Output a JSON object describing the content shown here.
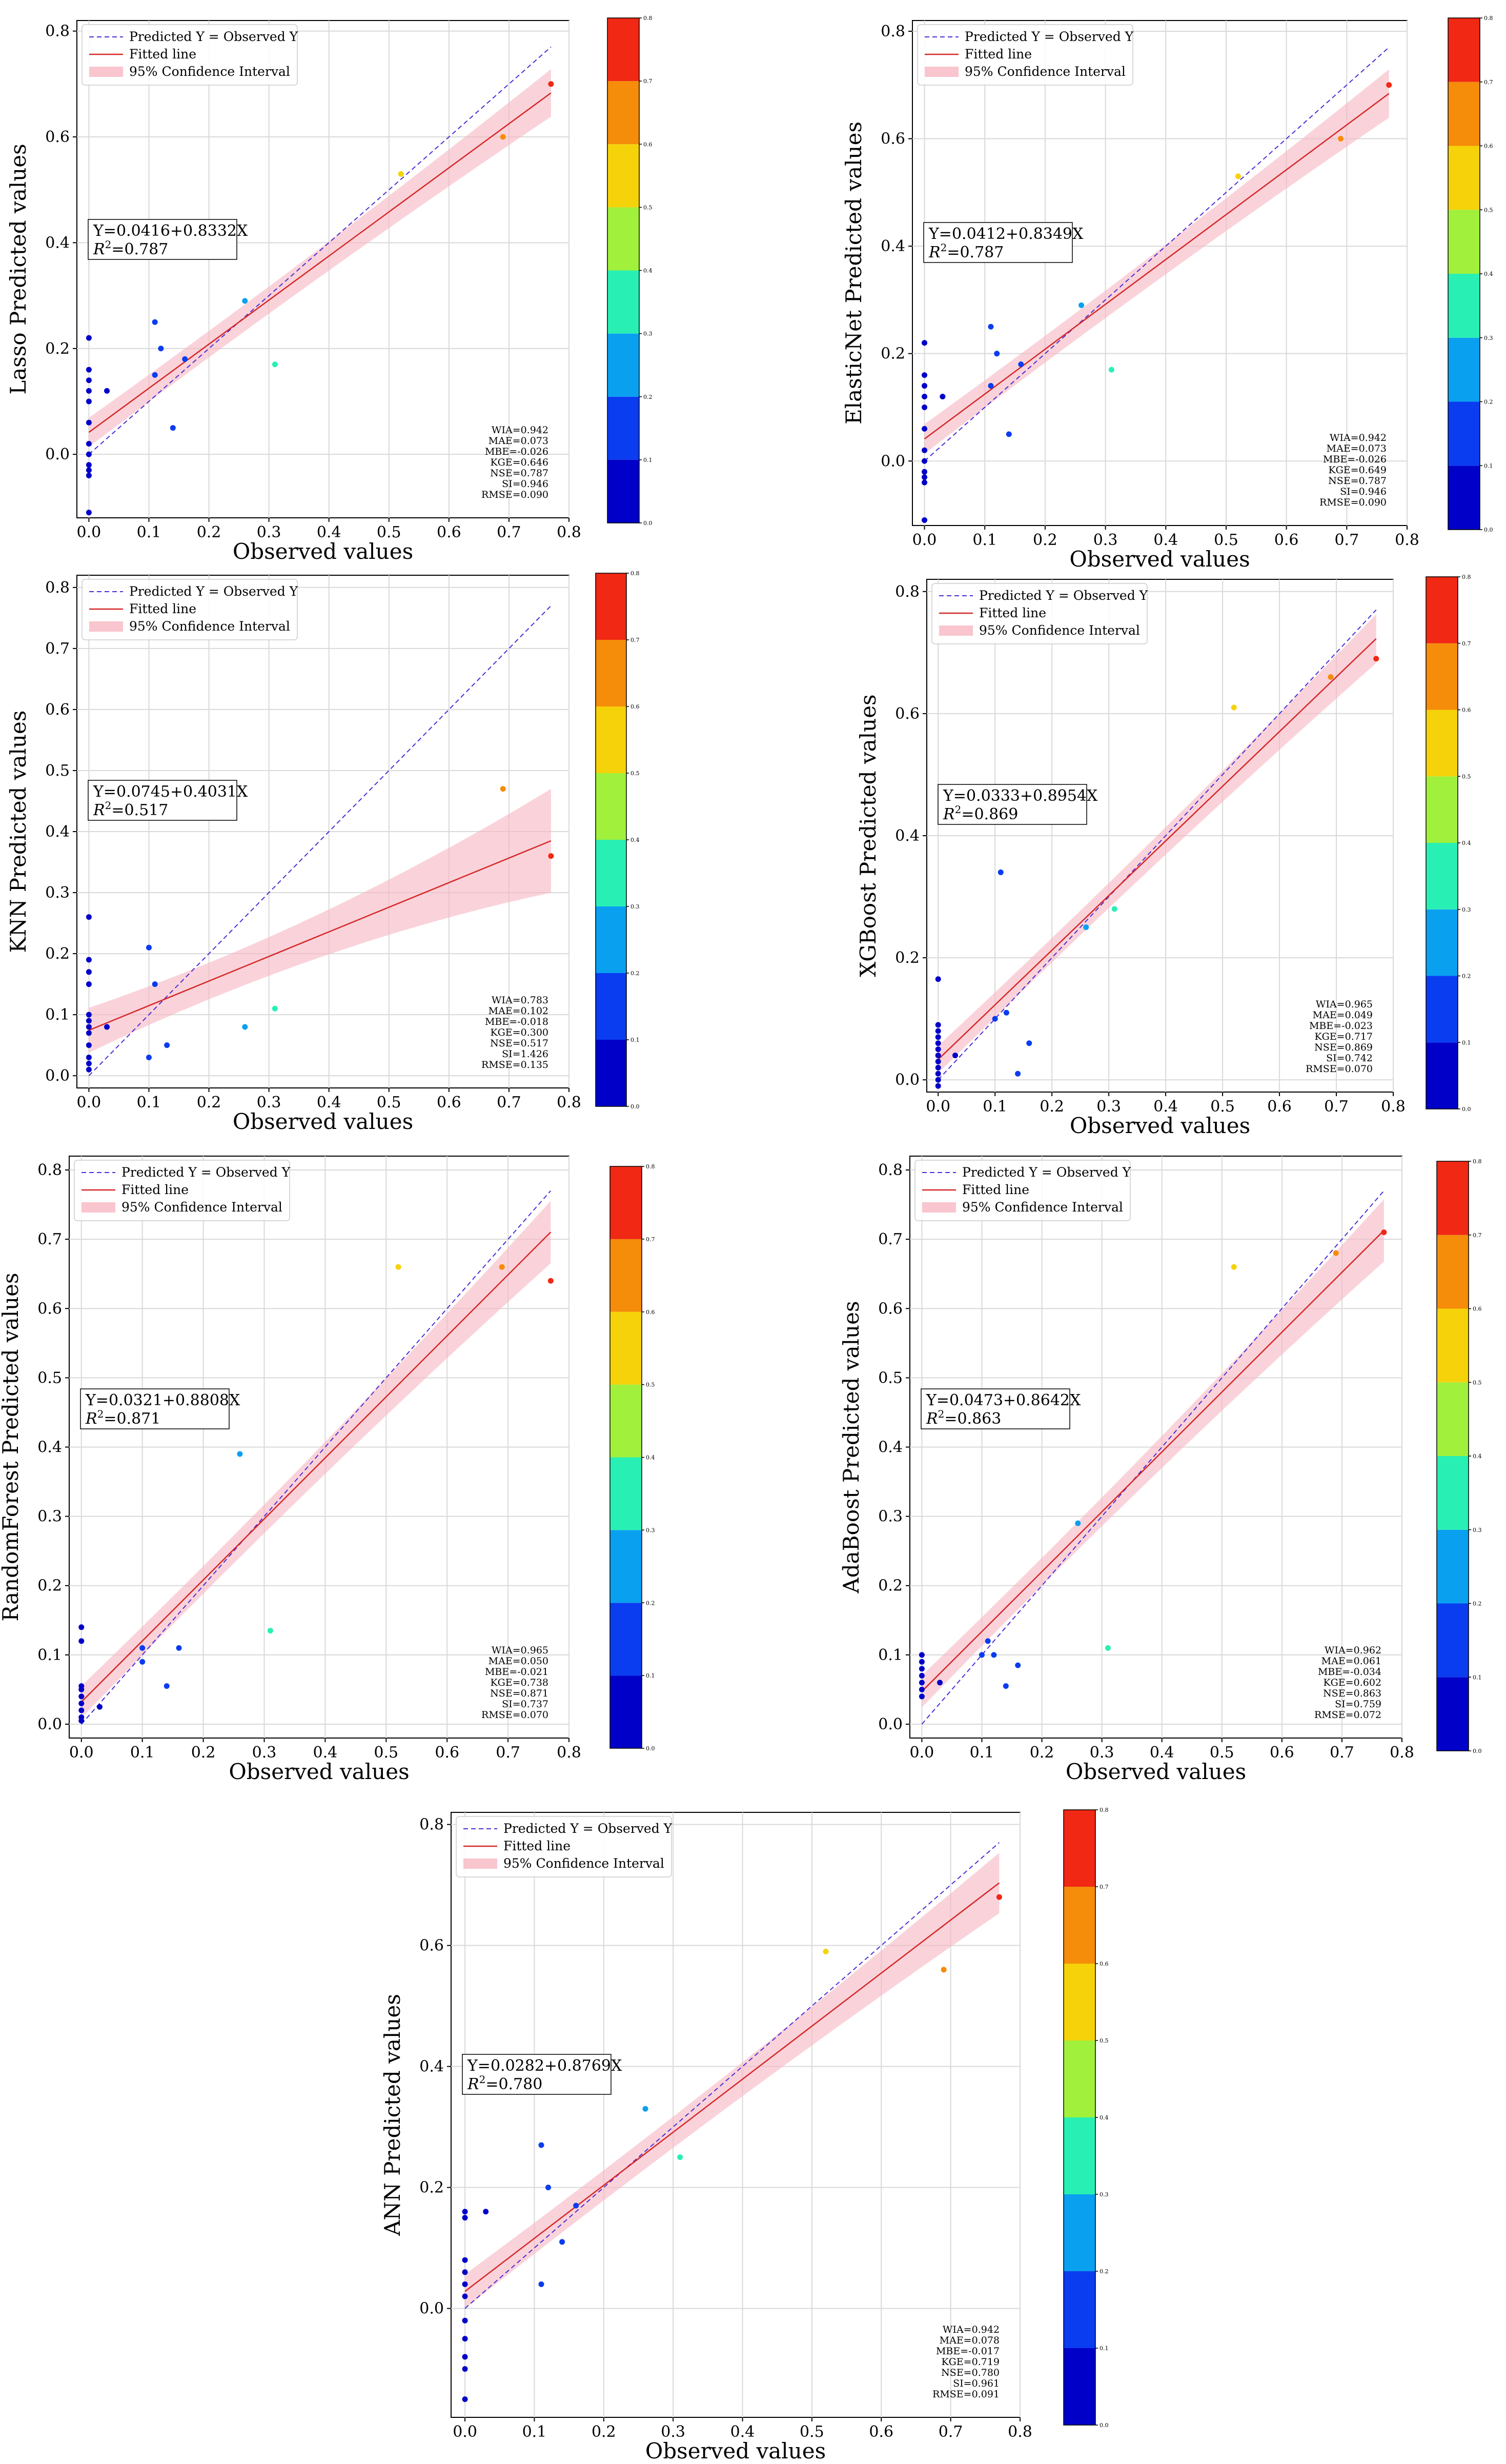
{
  "figure": {
    "panels": [
      {
        "model": "Lasso",
        "ylabel": "Lasso Predicted values",
        "equation": "Y=0.0416+0.8332X",
        "r2_value": "0.787",
        "metrics": [
          "WIA=0.942",
          "MAE=0.073",
          "MBE=-0.026",
          "KGE=0.646",
          "NSE=0.787",
          "SI=0.946",
          "RMSE=0.090"
        ]
      },
      {
        "model": "ElasticNet",
        "ylabel": "ElasticNet Predicted values",
        "equation": "Y=0.0412+0.8349X",
        "r2_value": "0.787",
        "metrics": [
          "WIA=0.942",
          "MAE=0.073",
          "MBE=-0.026",
          "KGE=0.649",
          "NSE=0.787",
          "SI=0.946",
          "RMSE=0.090"
        ]
      },
      {
        "model": "KNN",
        "ylabel": "KNN Predicted values",
        "equation": "Y=0.0745+0.4031X",
        "r2_value": "0.517",
        "metrics": [
          "WIA=0.783",
          "MAE=0.102",
          "MBE=-0.018",
          "KGE=0.300",
          "NSE=0.517",
          "SI=1.426",
          "RMSE=0.135"
        ]
      },
      {
        "model": "XGBoost",
        "ylabel": "XGBoost Predicted values",
        "equation": "Y=0.0333+0.8954X",
        "r2_value": "0.869",
        "metrics": [
          "WIA=0.965",
          "MAE=0.049",
          "MBE=-0.023",
          "KGE=0.717",
          "NSE=0.869",
          "SI=0.742",
          "RMSE=0.070"
        ]
      },
      {
        "model": "RandomForest",
        "ylabel": "RandomForest Predicted values",
        "equation": "Y=0.0321+0.8808X",
        "r2_value": "0.871",
        "metrics": [
          "WIA=0.965",
          "MAE=0.050",
          "MBE=-0.021",
          "KGE=0.738",
          "NSE=0.871",
          "SI=0.737",
          "RMSE=0.070"
        ]
      },
      {
        "model": "AdaBoost",
        "ylabel": "AdaBoost Predicted values",
        "equation": "Y=0.0473+0.8642X",
        "r2_value": "0.863",
        "metrics": [
          "WIA=0.962",
          "MAE=0.061",
          "MBE=-0.034",
          "KGE=0.602",
          "NSE=0.863",
          "SI=0.759",
          "RMSE=0.072"
        ]
      },
      {
        "model": "ANN",
        "ylabel": "ANN Predicted values",
        "equation": "Y=0.0282+0.8769X",
        "r2_value": "0.780",
        "metrics": [
          "WIA=0.942",
          "MAE=0.078",
          "MBE=-0.017",
          "KGE=0.719",
          "NSE=0.780",
          "SI=0.961",
          "RMSE=0.091"
        ]
      }
    ]
  },
  "chart_data": [
    {
      "type": "scatter",
      "title": "",
      "xlabel": "Observed values",
      "ylabel": "Lasso Predicted values",
      "xlim": [
        -0.02,
        0.8
      ],
      "ylim": [
        -0.12,
        0.82
      ],
      "xticks": [
        "0.0",
        "0.1",
        "0.2",
        "0.3",
        "0.4",
        "0.5",
        "0.6",
        "0.7",
        "0.8"
      ],
      "yticks": [
        "0.0",
        "0.2",
        "0.4",
        "0.6",
        "0.8"
      ],
      "legend": [
        "Predicted Y = Observed Y",
        "Fitted line",
        "95% Confidence Interval"
      ],
      "fit": {
        "intercept": 0.0416,
        "slope": 0.8332
      },
      "ci_halfwidth": [
        0.025,
        0.045
      ],
      "colorbar": {
        "min": 0.0,
        "max": 0.8,
        "ticks": [
          "0.0",
          "0.1",
          "0.2",
          "0.3",
          "0.4",
          "0.5",
          "0.6",
          "0.7",
          "0.8"
        ]
      },
      "points": [
        [
          0,
          -0.11
        ],
        [
          0,
          -0.04
        ],
        [
          0,
          -0.03
        ],
        [
          0,
          -0.02
        ],
        [
          0,
          0.0
        ],
        [
          0,
          0.02
        ],
        [
          0,
          0.06
        ],
        [
          0,
          0.1
        ],
        [
          0,
          0.12
        ],
        [
          0,
          0.14
        ],
        [
          0,
          0.16
        ],
        [
          0,
          0.22
        ],
        [
          0.03,
          0.12
        ],
        [
          0.11,
          0.25
        ],
        [
          0.11,
          0.15
        ],
        [
          0.12,
          0.2
        ],
        [
          0.14,
          0.05
        ],
        [
          0.16,
          0.18
        ],
        [
          0.26,
          0.29
        ],
        [
          0.31,
          0.17
        ],
        [
          0.52,
          0.53
        ],
        [
          0.69,
          0.6
        ],
        [
          0.77,
          0.7
        ]
      ]
    },
    {
      "type": "scatter",
      "title": "",
      "xlabel": "Observed values",
      "ylabel": "ElasticNet Predicted values",
      "xlim": [
        -0.02,
        0.8
      ],
      "ylim": [
        -0.12,
        0.82
      ],
      "xticks": [
        "0.0",
        "0.1",
        "0.2",
        "0.3",
        "0.4",
        "0.5",
        "0.6",
        "0.7",
        "0.8"
      ],
      "yticks": [
        "0.0",
        "0.2",
        "0.4",
        "0.6",
        "0.8"
      ],
      "legend": [
        "Predicted Y = Observed Y",
        "Fitted line",
        "95% Confidence Interval"
      ],
      "fit": {
        "intercept": 0.0412,
        "slope": 0.8349
      },
      "ci_halfwidth": [
        0.025,
        0.045
      ],
      "colorbar": {
        "min": 0.0,
        "max": 0.8,
        "ticks": [
          "0.0",
          "0.1",
          "0.2",
          "0.3",
          "0.4",
          "0.5",
          "0.6",
          "0.7",
          "0.8"
        ]
      },
      "points": [
        [
          0,
          -0.11
        ],
        [
          0,
          -0.04
        ],
        [
          0,
          -0.03
        ],
        [
          0,
          -0.02
        ],
        [
          0,
          0.0
        ],
        [
          0,
          0.02
        ],
        [
          0,
          0.06
        ],
        [
          0,
          0.1
        ],
        [
          0,
          0.12
        ],
        [
          0,
          0.14
        ],
        [
          0,
          0.16
        ],
        [
          0,
          0.22
        ],
        [
          0.03,
          0.12
        ],
        [
          0.11,
          0.25
        ],
        [
          0.11,
          0.14
        ],
        [
          0.12,
          0.2
        ],
        [
          0.14,
          0.05
        ],
        [
          0.16,
          0.18
        ],
        [
          0.26,
          0.29
        ],
        [
          0.31,
          0.17
        ],
        [
          0.52,
          0.53
        ],
        [
          0.69,
          0.6
        ],
        [
          0.77,
          0.7
        ]
      ]
    },
    {
      "type": "scatter",
      "title": "",
      "xlabel": "Observed values",
      "ylabel": "KNN Predicted values",
      "xlim": [
        -0.02,
        0.8
      ],
      "ylim": [
        -0.02,
        0.82
      ],
      "xticks": [
        "0.0",
        "0.1",
        "0.2",
        "0.3",
        "0.4",
        "0.5",
        "0.6",
        "0.7",
        "0.8"
      ],
      "yticks": [
        "0.0",
        "0.1",
        "0.2",
        "0.3",
        "0.4",
        "0.5",
        "0.6",
        "0.7",
        "0.8"
      ],
      "legend": [
        "Predicted Y = Observed Y",
        "Fitted line",
        "95% Confidence Interval"
      ],
      "fit": {
        "intercept": 0.0745,
        "slope": 0.4031
      },
      "ci_halfwidth": [
        0.03,
        0.085
      ],
      "colorbar": {
        "min": 0.0,
        "max": 0.8,
        "ticks": [
          "0.0",
          "0.1",
          "0.2",
          "0.3",
          "0.4",
          "0.5",
          "0.6",
          "0.7",
          "0.8"
        ]
      },
      "points": [
        [
          0,
          0.01
        ],
        [
          0,
          0.02
        ],
        [
          0,
          0.03
        ],
        [
          0,
          0.05
        ],
        [
          0,
          0.07
        ],
        [
          0,
          0.08
        ],
        [
          0,
          0.09
        ],
        [
          0,
          0.1
        ],
        [
          0,
          0.15
        ],
        [
          0,
          0.17
        ],
        [
          0,
          0.19
        ],
        [
          0,
          0.26
        ],
        [
          0.03,
          0.08
        ],
        [
          0.1,
          0.21
        ],
        [
          0.1,
          0.03
        ],
        [
          0.11,
          0.15
        ],
        [
          0.13,
          0.05
        ],
        [
          0.26,
          0.08
        ],
        [
          0.31,
          0.11
        ],
        [
          0.69,
          0.47
        ],
        [
          0.77,
          0.36
        ]
      ]
    },
    {
      "type": "scatter",
      "title": "",
      "xlabel": "Observed values",
      "ylabel": "XGBoost Predicted values",
      "xlim": [
        -0.02,
        0.8
      ],
      "ylim": [
        -0.02,
        0.82
      ],
      "xticks": [
        "0.0",
        "0.1",
        "0.2",
        "0.3",
        "0.4",
        "0.5",
        "0.6",
        "0.7",
        "0.8"
      ],
      "yticks": [
        "0.0",
        "0.2",
        "0.4",
        "0.6",
        "0.8"
      ],
      "legend": [
        "Predicted Y = Observed Y",
        "Fitted line",
        "95% Confidence Interval"
      ],
      "fit": {
        "intercept": 0.0333,
        "slope": 0.8954
      },
      "ci_halfwidth": [
        0.02,
        0.04
      ],
      "colorbar": {
        "min": 0.0,
        "max": 0.8,
        "ticks": [
          "0.0",
          "0.1",
          "0.2",
          "0.3",
          "0.4",
          "0.5",
          "0.6",
          "0.7",
          "0.8"
        ]
      },
      "points": [
        [
          0,
          -0.01
        ],
        [
          0,
          0.0
        ],
        [
          0,
          0.01
        ],
        [
          0,
          0.02
        ],
        [
          0,
          0.03
        ],
        [
          0,
          0.04
        ],
        [
          0,
          0.05
        ],
        [
          0,
          0.06
        ],
        [
          0,
          0.07
        ],
        [
          0,
          0.08
        ],
        [
          0,
          0.09
        ],
        [
          0,
          0.165
        ],
        [
          0.03,
          0.04
        ],
        [
          0.1,
          0.1
        ],
        [
          0.11,
          0.34
        ],
        [
          0.12,
          0.11
        ],
        [
          0.14,
          0.01
        ],
        [
          0.16,
          0.06
        ],
        [
          0.26,
          0.25
        ],
        [
          0.31,
          0.28
        ],
        [
          0.52,
          0.61
        ],
        [
          0.69,
          0.66
        ],
        [
          0.77,
          0.69
        ]
      ]
    },
    {
      "type": "scatter",
      "title": "",
      "xlabel": "Observed values",
      "ylabel": "RandomForest Predicted values",
      "xlim": [
        -0.02,
        0.8
      ],
      "ylim": [
        -0.02,
        0.82
      ],
      "xticks": [
        "0.0",
        "0.1",
        "0.2",
        "0.3",
        "0.4",
        "0.5",
        "0.6",
        "0.7",
        "0.8"
      ],
      "yticks": [
        "0.0",
        "0.1",
        "0.2",
        "0.3",
        "0.4",
        "0.5",
        "0.6",
        "0.7",
        "0.8"
      ],
      "legend": [
        "Predicted Y = Observed Y",
        "Fitted line",
        "95% Confidence Interval"
      ],
      "fit": {
        "intercept": 0.0321,
        "slope": 0.8808
      },
      "ci_halfwidth": [
        0.02,
        0.045
      ],
      "colorbar": {
        "min": 0.0,
        "max": 0.8,
        "ticks": [
          "0.0",
          "0.1",
          "0.2",
          "0.3",
          "0.4",
          "0.5",
          "0.6",
          "0.7",
          "0.8"
        ]
      },
      "points": [
        [
          0,
          0.005
        ],
        [
          0,
          0.01
        ],
        [
          0,
          0.02
        ],
        [
          0,
          0.03
        ],
        [
          0,
          0.04
        ],
        [
          0,
          0.05
        ],
        [
          0,
          0.055
        ],
        [
          0,
          0.12
        ],
        [
          0,
          0.14
        ],
        [
          0.03,
          0.025
        ],
        [
          0.1,
          0.09
        ],
        [
          0.1,
          0.11
        ],
        [
          0.14,
          0.055
        ],
        [
          0.16,
          0.11
        ],
        [
          0.26,
          0.39
        ],
        [
          0.31,
          0.135
        ],
        [
          0.52,
          0.66
        ],
        [
          0.69,
          0.66
        ],
        [
          0.77,
          0.64
        ]
      ]
    },
    {
      "type": "scatter",
      "title": "",
      "xlabel": "Observed values",
      "ylabel": "AdaBoost Predicted values",
      "xlim": [
        -0.02,
        0.8
      ],
      "ylim": [
        -0.02,
        0.82
      ],
      "xticks": [
        "0.0",
        "0.1",
        "0.2",
        "0.3",
        "0.4",
        "0.5",
        "0.6",
        "0.7",
        "0.8"
      ],
      "yticks": [
        "0.0",
        "0.1",
        "0.2",
        "0.3",
        "0.4",
        "0.5",
        "0.6",
        "0.7",
        "0.8"
      ],
      "legend": [
        "Predicted Y = Observed Y",
        "Fitted line",
        "95% Confidence Interval"
      ],
      "fit": {
        "intercept": 0.0473,
        "slope": 0.8642
      },
      "ci_halfwidth": [
        0.02,
        0.045
      ],
      "colorbar": {
        "min": 0.0,
        "max": 0.8,
        "ticks": [
          "0.0",
          "0.1",
          "0.2",
          "0.3",
          "0.4",
          "0.5",
          "0.6",
          "0.7",
          "0.8"
        ]
      },
      "points": [
        [
          0,
          0.04
        ],
        [
          0,
          0.05
        ],
        [
          0,
          0.06
        ],
        [
          0,
          0.07
        ],
        [
          0,
          0.08
        ],
        [
          0,
          0.09
        ],
        [
          0,
          0.1
        ],
        [
          0.03,
          0.06
        ],
        [
          0.1,
          0.1
        ],
        [
          0.11,
          0.12
        ],
        [
          0.12,
          0.1
        ],
        [
          0.14,
          0.055
        ],
        [
          0.16,
          0.085
        ],
        [
          0.26,
          0.29
        ],
        [
          0.31,
          0.11
        ],
        [
          0.52,
          0.66
        ],
        [
          0.69,
          0.68
        ],
        [
          0.77,
          0.71
        ]
      ]
    },
    {
      "type": "scatter",
      "title": "",
      "xlabel": "Observed values",
      "ylabel": "ANN Predicted values",
      "xlim": [
        -0.02,
        0.8
      ],
      "ylim": [
        -0.18,
        0.82
      ],
      "xticks": [
        "0.0",
        "0.1",
        "0.2",
        "0.3",
        "0.4",
        "0.5",
        "0.6",
        "0.7",
        "0.8"
      ],
      "yticks": [
        "0.0",
        "0.2",
        "0.4",
        "0.6",
        "0.8"
      ],
      "legend": [
        "Predicted Y = Observed Y",
        "Fitted line",
        "95% Confidence Interval"
      ],
      "fit": {
        "intercept": 0.0282,
        "slope": 0.8769
      },
      "ci_halfwidth": [
        0.025,
        0.05
      ],
      "colorbar": {
        "min": 0.0,
        "max": 0.8,
        "ticks": [
          "0.0",
          "0.1",
          "0.2",
          "0.3",
          "0.4",
          "0.5",
          "0.6",
          "0.7",
          "0.8"
        ]
      },
      "points": [
        [
          0,
          -0.15
        ],
        [
          0,
          -0.1
        ],
        [
          0,
          -0.08
        ],
        [
          0,
          -0.05
        ],
        [
          0,
          -0.02
        ],
        [
          0,
          0.02
        ],
        [
          0,
          0.04
        ],
        [
          0,
          0.06
        ],
        [
          0,
          0.08
        ],
        [
          0,
          0.15
        ],
        [
          0,
          0.16
        ],
        [
          0.03,
          0.16
        ],
        [
          0.11,
          0.27
        ],
        [
          0.11,
          0.04
        ],
        [
          0.12,
          0.2
        ],
        [
          0.14,
          0.11
        ],
        [
          0.16,
          0.17
        ],
        [
          0.26,
          0.33
        ],
        [
          0.31,
          0.25
        ],
        [
          0.52,
          0.59
        ],
        [
          0.69,
          0.56
        ],
        [
          0.77,
          0.68
        ]
      ]
    }
  ]
}
